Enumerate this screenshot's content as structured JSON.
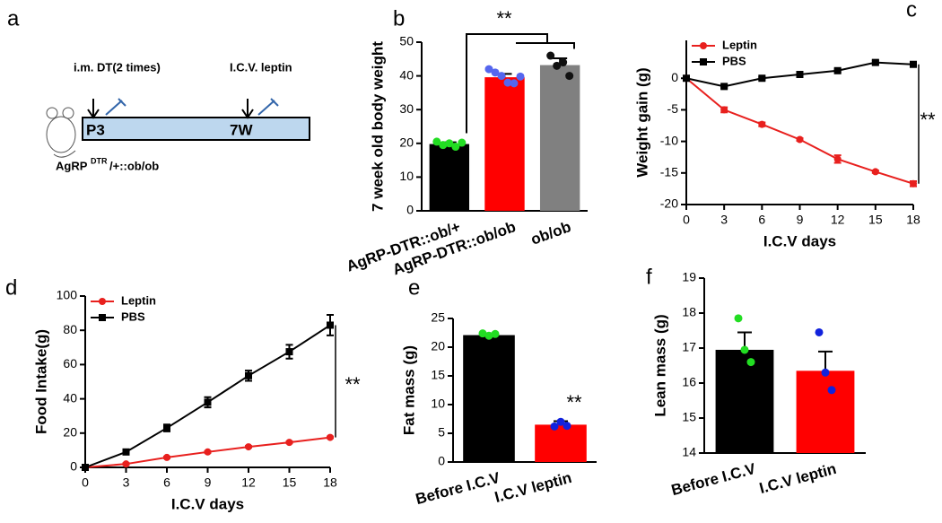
{
  "diagram": {
    "panel": "a",
    "label_dt": "i.m. DT(2 times)",
    "label_icv": "I.C.V. leptin",
    "start": "P3",
    "end": "7W",
    "genotype": "AgRP",
    "genotype_sup": "DTR",
    "genotype_rest": "/+::ob/ob"
  },
  "chart_data": [
    {
      "type": "bar",
      "panel": "b",
      "ylabel": "7 week old body weight",
      "categories": [
        "AgRP-DTR::ob/+",
        "AgRP-DTR::ob/ob",
        "ob/ob"
      ],
      "values": [
        19.8,
        39.6,
        43.2
      ],
      "errors": [
        0.5,
        1.0,
        2.0
      ],
      "colors": [
        "#000000",
        "#ff0000",
        "#808080"
      ],
      "point_colors": [
        "#22dd22",
        "#5566ee",
        "#111111"
      ],
      "points": [
        [
          20.5,
          19.5,
          20.0,
          19.0,
          20.2
        ],
        [
          42.0,
          41.0,
          40.0,
          38.0,
          37.8,
          39.8
        ],
        [
          46.0,
          43.0,
          44.0,
          40.0
        ]
      ],
      "ylim": [
        0,
        50
      ],
      "yticks": [
        0,
        10,
        20,
        30,
        40,
        50
      ],
      "annotation": "**"
    },
    {
      "type": "line",
      "panel": "c",
      "xlabel": "I.C.V days",
      "ylabel": "Weight gain (g)",
      "x": [
        0,
        3,
        6,
        9,
        12,
        15,
        18
      ],
      "series": [
        {
          "name": "Leptin",
          "color": "#e8201e",
          "marker": "circle",
          "values": [
            0,
            -5.0,
            -7.3,
            -9.7,
            -12.8,
            -14.8,
            -16.7
          ],
          "errors": [
            0,
            0.4,
            0.3,
            0.2,
            0.6,
            0.2,
            0.4
          ]
        },
        {
          "name": "PBS",
          "color": "#000000",
          "marker": "square",
          "values": [
            0,
            -1.3,
            0,
            0.6,
            1.2,
            2.5,
            2.2
          ],
          "errors": [
            0,
            0.2,
            0.2,
            0.2,
            0.2,
            0.3,
            0.2
          ]
        }
      ],
      "xlim": [
        0,
        18
      ],
      "xticks": [
        0,
        3,
        6,
        9,
        12,
        15,
        18
      ],
      "ylim": [
        -20,
        6
      ],
      "yticks": [
        0,
        -5,
        -10,
        -15,
        -20
      ],
      "annotation": "**"
    },
    {
      "type": "line",
      "panel": "d",
      "xlabel": "I.C.V days",
      "ylabel": "Food Intake(g)",
      "x": [
        0,
        3,
        6,
        9,
        12,
        15,
        18
      ],
      "series": [
        {
          "name": "Leptin",
          "color": "#e8201e",
          "marker": "circle",
          "values": [
            0,
            2,
            5.8,
            9,
            12,
            14.6,
            17.5
          ],
          "errors": [
            0,
            0.5,
            0.5,
            0.5,
            0.5,
            0.5,
            0.5
          ]
        },
        {
          "name": "PBS",
          "color": "#000000",
          "marker": "square",
          "values": [
            0,
            9,
            23,
            38,
            53.5,
            67.5,
            83
          ],
          "errors": [
            0,
            1,
            2,
            3,
            3,
            4,
            6
          ]
        }
      ],
      "xlim": [
        0,
        18
      ],
      "xticks": [
        0,
        3,
        6,
        9,
        12,
        15,
        18
      ],
      "ylim": [
        0,
        100
      ],
      "yticks": [
        0,
        20,
        40,
        60,
        80,
        100
      ],
      "annotation": "**"
    },
    {
      "type": "bar",
      "panel": "e",
      "ylabel": "Fat mass (g)",
      "categories": [
        "Before I.C.V",
        "I.C.V leptin"
      ],
      "values": [
        22.1,
        6.5
      ],
      "errors": [
        0.3,
        0.6
      ],
      "colors": [
        "#000000",
        "#ff0000"
      ],
      "point_colors": [
        "#22dd22",
        "#1122dd"
      ],
      "points": [
        [
          22.4,
          22.0,
          22.3
        ],
        [
          6.2,
          7.0,
          6.3
        ]
      ],
      "ylim": [
        0,
        25
      ],
      "yticks": [
        0,
        5,
        10,
        15,
        20,
        25
      ],
      "annotation": "**"
    },
    {
      "type": "bar",
      "panel": "f",
      "ylabel": "Lean mass (g)",
      "categories": [
        "Before I.C.V",
        "I.C.V leptin"
      ],
      "values": [
        16.95,
        16.35
      ],
      "errors": [
        0.5,
        0.55
      ],
      "colors": [
        "#000000",
        "#ff0000"
      ],
      "point_colors": [
        "#22dd22",
        "#1122dd"
      ],
      "points": [
        [
          17.85,
          16.95,
          16.6
        ],
        [
          17.45,
          16.3,
          15.8
        ]
      ],
      "ylim": [
        14,
        19
      ],
      "yticks": [
        14,
        15,
        16,
        17,
        18,
        19
      ]
    }
  ]
}
